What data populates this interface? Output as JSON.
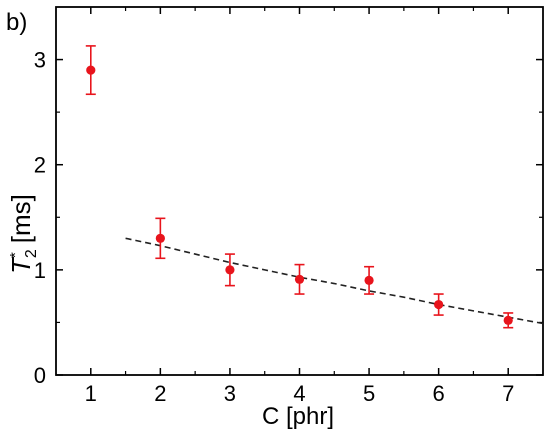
{
  "chart_data": {
    "type": "scatter",
    "panel_label": "b)",
    "xlabel": "C [phr]",
    "ylabel": {
      "symbol": "T",
      "superscript": "*",
      "subscript": "2",
      "unit": "[ms]"
    },
    "xlim": [
      0.5,
      7.5
    ],
    "ylim": [
      0,
      3.5
    ],
    "xticks": [
      1,
      2,
      3,
      4,
      5,
      6,
      7
    ],
    "yticks": [
      0,
      1,
      2,
      3
    ],
    "x_tick_labels": [
      "1",
      "2",
      "3",
      "4",
      "5",
      "6",
      "7"
    ],
    "y_tick_labels": [
      "0",
      "1",
      "2",
      "3"
    ],
    "grid": false,
    "legend": "none",
    "series": [
      {
        "style": "markers-with-error-bars",
        "color": "#e8141c",
        "x": [
          1,
          2,
          3,
          4,
          5,
          6,
          7
        ],
        "y": [
          2.9,
          1.3,
          1.0,
          0.91,
          0.9,
          0.67,
          0.52
        ],
        "error": [
          0.23,
          0.19,
          0.15,
          0.14,
          0.13,
          0.1,
          0.07
        ]
      },
      {
        "style": "dashed-fit",
        "color": "#222222",
        "x": [
          1.5,
          2,
          2.5,
          3,
          3.5,
          4,
          4.5,
          5,
          5.5,
          6,
          6.5,
          7,
          7.5
        ],
        "y": [
          1.3,
          1.23,
          1.15,
          1.07,
          1.0,
          0.93,
          0.87,
          0.8,
          0.74,
          0.67,
          0.61,
          0.55,
          0.49
        ]
      }
    ]
  }
}
